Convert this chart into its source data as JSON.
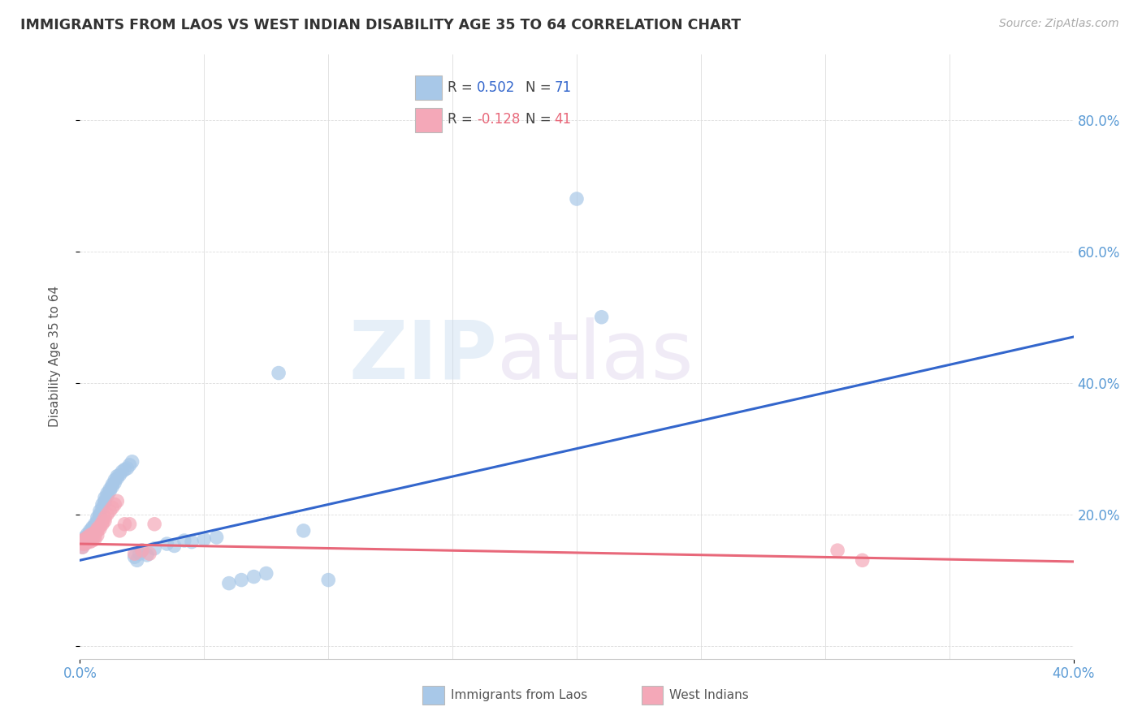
{
  "title": "IMMIGRANTS FROM LAOS VS WEST INDIAN DISABILITY AGE 35 TO 64 CORRELATION CHART",
  "source": "Source: ZipAtlas.com",
  "ylabel": "Disability Age 35 to 64",
  "xlim": [
    0.0,
    0.4
  ],
  "ylim": [
    -0.02,
    0.9
  ],
  "watermark_zip": "ZIP",
  "watermark_atlas": "atlas",
  "legend_label_blue": "Immigrants from Laos",
  "legend_label_pink": "West Indians",
  "blue_color": "#A8C8E8",
  "pink_color": "#F4A8B8",
  "blue_line_color": "#3366CC",
  "pink_line_color": "#E8687A",
  "blue_line_x0": 0.0,
  "blue_line_y0": 0.13,
  "blue_line_x1": 0.4,
  "blue_line_y1": 0.47,
  "pink_line_x0": 0.0,
  "pink_line_y0": 0.155,
  "pink_line_x1": 0.4,
  "pink_line_y1": 0.128,
  "right_yticks": [
    0.0,
    0.2,
    0.4,
    0.6,
    0.8
  ],
  "right_ylabels": [
    "",
    "20.0%",
    "40.0%",
    "60.0%",
    "80.0%"
  ],
  "laos_x": [
    0.001,
    0.001,
    0.001,
    0.002,
    0.002,
    0.002,
    0.002,
    0.003,
    0.003,
    0.003,
    0.003,
    0.003,
    0.004,
    0.004,
    0.004,
    0.004,
    0.005,
    0.005,
    0.005,
    0.005,
    0.006,
    0.006,
    0.006,
    0.007,
    0.007,
    0.007,
    0.008,
    0.008,
    0.008,
    0.009,
    0.009,
    0.01,
    0.01,
    0.01,
    0.011,
    0.011,
    0.012,
    0.012,
    0.013,
    0.013,
    0.014,
    0.014,
    0.015,
    0.015,
    0.016,
    0.017,
    0.018,
    0.019,
    0.02,
    0.021,
    0.022,
    0.023,
    0.024,
    0.025,
    0.027,
    0.03,
    0.035,
    0.038,
    0.042,
    0.045,
    0.05,
    0.055,
    0.06,
    0.065,
    0.07,
    0.075,
    0.08,
    0.09,
    0.1,
    0.2,
    0.21
  ],
  "laos_y": [
    0.155,
    0.16,
    0.15,
    0.165,
    0.158,
    0.162,
    0.155,
    0.17,
    0.165,
    0.16,
    0.158,
    0.162,
    0.175,
    0.168,
    0.172,
    0.165,
    0.18,
    0.175,
    0.17,
    0.178,
    0.185,
    0.178,
    0.182,
    0.195,
    0.19,
    0.185,
    0.205,
    0.2,
    0.198,
    0.215,
    0.21,
    0.225,
    0.22,
    0.218,
    0.232,
    0.228,
    0.238,
    0.235,
    0.245,
    0.242,
    0.252,
    0.248,
    0.258,
    0.255,
    0.26,
    0.265,
    0.268,
    0.27,
    0.275,
    0.28,
    0.135,
    0.13,
    0.14,
    0.145,
    0.138,
    0.148,
    0.155,
    0.152,
    0.16,
    0.158,
    0.162,
    0.165,
    0.095,
    0.1,
    0.105,
    0.11,
    0.415,
    0.175,
    0.1,
    0.68,
    0.5
  ],
  "westindian_x": [
    0.001,
    0.001,
    0.001,
    0.002,
    0.002,
    0.002,
    0.003,
    0.003,
    0.003,
    0.004,
    0.004,
    0.004,
    0.005,
    0.005,
    0.005,
    0.006,
    0.006,
    0.006,
    0.007,
    0.007,
    0.007,
    0.008,
    0.008,
    0.009,
    0.009,
    0.01,
    0.01,
    0.011,
    0.012,
    0.013,
    0.014,
    0.015,
    0.016,
    0.018,
    0.02,
    0.022,
    0.025,
    0.028,
    0.03,
    0.305,
    0.315
  ],
  "westindian_y": [
    0.155,
    0.16,
    0.15,
    0.158,
    0.162,
    0.155,
    0.165,
    0.158,
    0.16,
    0.168,
    0.162,
    0.158,
    0.17,
    0.165,
    0.16,
    0.172,
    0.168,
    0.162,
    0.178,
    0.175,
    0.168,
    0.182,
    0.178,
    0.188,
    0.185,
    0.195,
    0.19,
    0.2,
    0.205,
    0.21,
    0.215,
    0.22,
    0.175,
    0.185,
    0.185,
    0.14,
    0.145,
    0.14,
    0.185,
    0.145,
    0.13
  ]
}
